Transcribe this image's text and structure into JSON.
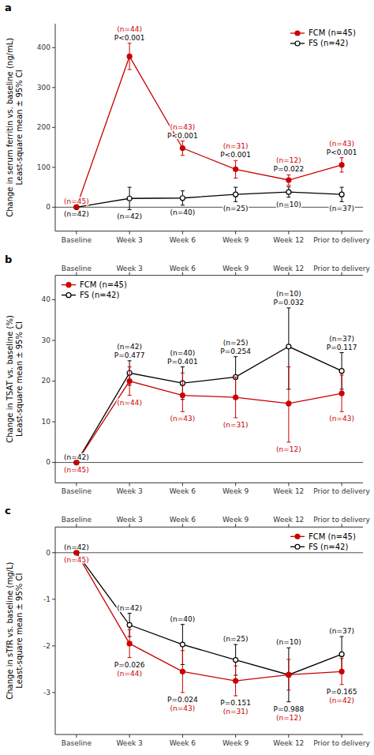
{
  "chart_data": [
    {
      "type": "line",
      "title": "a",
      "ylabel": "Change in serum ferritin vs. baseline (ng/mL)\nLeast-square mean ± 95% CI",
      "categories": [
        "Baseline",
        "Week 3",
        "Week 6",
        "Week 9",
        "Week 12",
        "Prior to delivery"
      ],
      "ylim": [
        -60,
        460
      ],
      "yticks": [
        0,
        100,
        200,
        300,
        400
      ],
      "grid": false,
      "legend": "upper-right",
      "p_values": [
        null,
        "P<0.001",
        "P<0.001",
        "P<0.001",
        "P=0.022",
        "P<0.001"
      ],
      "series": [
        {
          "name": "FS (n=42)",
          "color": "#000000",
          "marker": "circle-open",
          "line_style": "solid",
          "values": [
            0,
            22,
            23,
            32,
            38,
            32
          ],
          "error_lo": [
            0,
            28,
            18,
            18,
            13,
            18
          ],
          "error_hi": [
            0,
            28,
            18,
            18,
            13,
            18
          ],
          "n_labels": [
            "(n=42)",
            "(n=42)",
            "(n=40)",
            "(n=25)",
            "(n=10)",
            "(n=37)"
          ]
        },
        {
          "name": "FCM (n=45)",
          "color": "#cc0000",
          "marker": "circle",
          "line_style": "solid",
          "values": [
            0,
            378,
            148,
            95,
            68,
            106
          ],
          "error_lo": [
            0,
            33,
            18,
            22,
            13,
            18
          ],
          "error_hi": [
            0,
            33,
            18,
            22,
            13,
            18
          ],
          "n_labels": [
            "(n=45)",
            "(n=44)",
            "(n=43)",
            "(n=31)",
            "(n=12)",
            "(n=43)"
          ]
        }
      ]
    },
    {
      "type": "line",
      "title": "b",
      "ylabel": "Change in TSAT vs. baseline (%)\nLeast-square mean ± 95% CI",
      "categories": [
        "Baseline",
        "Week 3",
        "Week 6",
        "Week 9",
        "Week 12",
        "Prior to delivery"
      ],
      "ylim": [
        -5,
        46
      ],
      "yticks": [
        0,
        10,
        20,
        30,
        40
      ],
      "grid": false,
      "legend": "upper-left",
      "p_values": [
        null,
        "P=0.477",
        "P=0.401",
        "P=0.254",
        "P=0.032",
        "P=0.117"
      ],
      "series": [
        {
          "name": "FS (n=42)",
          "color": "#000000",
          "marker": "circle-open",
          "line_style": "solid",
          "values": [
            0,
            22,
            19.5,
            21,
            28.5,
            22.5
          ],
          "error_lo": [
            0,
            3,
            4,
            5,
            10.5,
            4.5
          ],
          "error_hi": [
            0,
            3,
            4,
            5,
            9.5,
            4.5
          ],
          "n_labels": [
            "(n=42)",
            "(n=42)",
            "(n=40)",
            "(n=25)",
            "(n=10)",
            "(n=37)"
          ]
        },
        {
          "name": "FCM (n=45)",
          "color": "#cc0000",
          "marker": "circle",
          "line_style": "solid",
          "values": [
            0,
            20,
            16.5,
            16,
            14.5,
            17
          ],
          "error_lo": [
            0,
            3.5,
            4,
            5,
            9.5,
            4.5
          ],
          "error_hi": [
            0,
            3.5,
            5.5,
            5,
            9,
            4.5
          ],
          "n_labels": [
            "(n=45)",
            "(n=44)",
            "(n=43)",
            "(n=31)",
            "(n=12)",
            "(n=43)"
          ]
        }
      ]
    },
    {
      "type": "line",
      "title": "c",
      "ylabel": "Change in sTfR vs. baseline (mg/L)\nLeast-square mean ± 95% CI",
      "categories": [
        "Baseline",
        "Week 3",
        "Week 6",
        "Week 9",
        "Week 12",
        "Prior to delivery"
      ],
      "ylim": [
        -3.9,
        0.55
      ],
      "yticks": [
        0,
        -1,
        -2,
        -3
      ],
      "grid": false,
      "legend": "upper-right",
      "p_values": [
        null,
        "P=0.026",
        "P=0.024",
        "P=0.151",
        "P=0.988",
        "P=0.165"
      ],
      "series": [
        {
          "name": "FS (n=42)",
          "color": "#000000",
          "marker": "circle-open",
          "line_style": "solid",
          "values": [
            0,
            -1.55,
            -1.97,
            -2.3,
            -2.62,
            -2.18
          ],
          "error_lo": [
            0,
            0.25,
            0.43,
            0.33,
            0.58,
            0.38
          ],
          "error_hi": [
            0,
            0.25,
            0.43,
            0.33,
            0.58,
            0.38
          ],
          "n_labels": [
            "(n=42)",
            "(n=42)",
            "(n=40)",
            "(n=25)",
            "(n=10)",
            "(n=37)"
          ]
        },
        {
          "name": "FCM (n=45)",
          "color": "#cc0000",
          "marker": "circle",
          "line_style": "solid",
          "values": [
            0,
            -1.95,
            -2.55,
            -2.75,
            -2.62,
            -2.55
          ],
          "error_lo": [
            0,
            0.3,
            0.45,
            0.32,
            0.33,
            0.28
          ],
          "error_hi": [
            0,
            0.3,
            0.45,
            0.32,
            0.33,
            0.28
          ],
          "n_labels": [
            "(n=45)",
            "(n=44)",
            "(n=43)",
            "(n=31)",
            "(n=12)",
            "(n=42)"
          ]
        }
      ]
    }
  ]
}
